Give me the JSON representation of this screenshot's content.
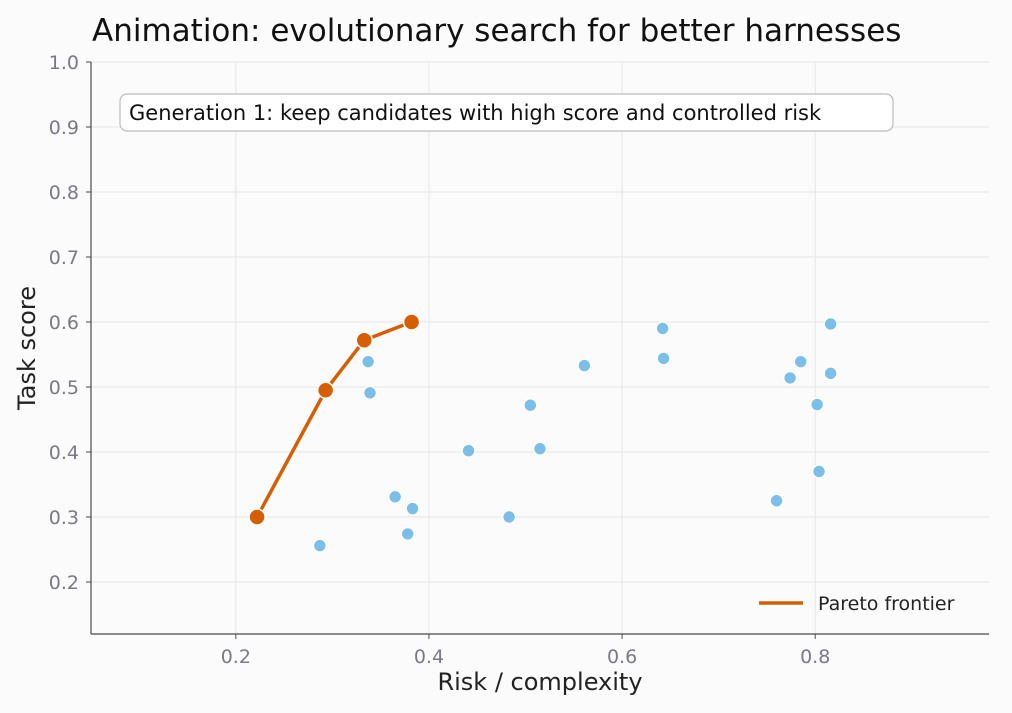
{
  "chart_data": {
    "type": "scatter",
    "title": "Animation: evolutionary search for better harnesses",
    "xlabel": "Risk / complexity",
    "ylabel": "Task score",
    "xlim": [
      0.05,
      0.98
    ],
    "ylim": [
      0.12,
      1.0
    ],
    "xticks": [
      0.2,
      0.4,
      0.6,
      0.8
    ],
    "yticks": [
      0.2,
      0.3,
      0.4,
      0.5,
      0.6,
      0.7,
      0.8,
      0.9,
      1.0
    ],
    "grid": true,
    "annotation": "Generation 1: keep candidates with high score and controlled risk",
    "legend_position": "bottom-right",
    "colors": {
      "candidates": "#7bbfe8",
      "pareto": "#d55e00"
    },
    "candidates": [
      {
        "x": 0.287,
        "y": 0.256
      },
      {
        "x": 0.337,
        "y": 0.539
      },
      {
        "x": 0.339,
        "y": 0.491
      },
      {
        "x": 0.365,
        "y": 0.331
      },
      {
        "x": 0.378,
        "y": 0.274
      },
      {
        "x": 0.383,
        "y": 0.313
      },
      {
        "x": 0.441,
        "y": 0.402
      },
      {
        "x": 0.483,
        "y": 0.3
      },
      {
        "x": 0.505,
        "y": 0.472
      },
      {
        "x": 0.515,
        "y": 0.405
      },
      {
        "x": 0.561,
        "y": 0.533
      },
      {
        "x": 0.642,
        "y": 0.59
      },
      {
        "x": 0.643,
        "y": 0.544
      },
      {
        "x": 0.76,
        "y": 0.325
      },
      {
        "x": 0.774,
        "y": 0.514
      },
      {
        "x": 0.785,
        "y": 0.539
      },
      {
        "x": 0.802,
        "y": 0.473
      },
      {
        "x": 0.804,
        "y": 0.37
      },
      {
        "x": 0.816,
        "y": 0.597
      },
      {
        "x": 0.816,
        "y": 0.521
      }
    ],
    "series": [
      {
        "name": "Pareto frontier",
        "points": [
          {
            "x": 0.222,
            "y": 0.3
          },
          {
            "x": 0.293,
            "y": 0.495
          },
          {
            "x": 0.333,
            "y": 0.572
          },
          {
            "x": 0.382,
            "y": 0.6
          }
        ]
      }
    ]
  }
}
